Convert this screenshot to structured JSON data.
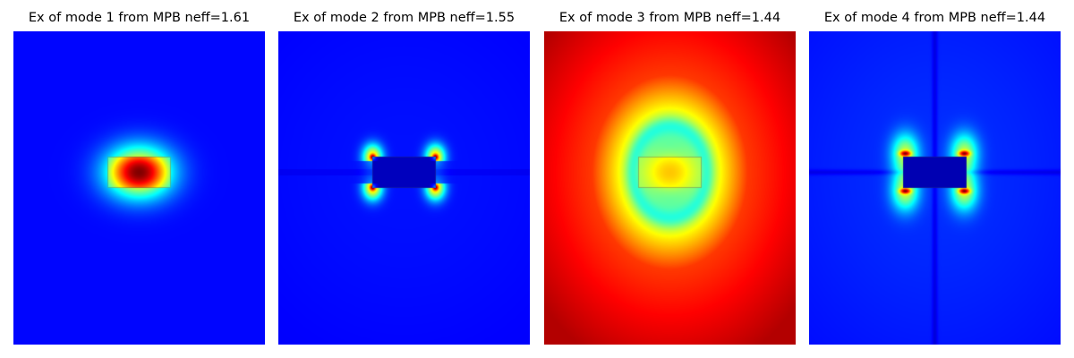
{
  "figure": {
    "colormap": "jet",
    "panels": [
      {
        "title": "Ex of mode 1 from MPB neff=1.61",
        "mode": 1,
        "neff": 1.61,
        "pattern": "fundamental-core"
      },
      {
        "title": "Ex of mode 2 from MPB neff=1.55",
        "mode": 2,
        "neff": 1.55,
        "pattern": "corner-hotspots"
      },
      {
        "title": "Ex of mode 3 from MPB neff=1.44",
        "mode": 3,
        "neff": 1.44,
        "pattern": "ring"
      },
      {
        "title": "Ex of mode 4 from MPB neff=1.44",
        "mode": 4,
        "neff": 1.44,
        "pattern": "corner-lobes"
      }
    ]
  },
  "chart_data": [
    {
      "type": "heatmap",
      "title": "Ex of mode 1 from MPB neff=1.61",
      "quantity": "Ex",
      "mode": 1,
      "neff": 1.61,
      "colormap": "jet",
      "axes": "off"
    },
    {
      "type": "heatmap",
      "title": "Ex of mode 2 from MPB neff=1.55",
      "quantity": "Ex",
      "mode": 2,
      "neff": 1.55,
      "colormap": "jet",
      "axes": "off"
    },
    {
      "type": "heatmap",
      "title": "Ex of mode 3 from MPB neff=1.44",
      "quantity": "Ex",
      "mode": 3,
      "neff": 1.44,
      "colormap": "jet",
      "axes": "off"
    },
    {
      "type": "heatmap",
      "title": "Ex of mode 4 from MPB neff=1.44",
      "quantity": "Ex",
      "mode": 4,
      "neff": 1.44,
      "colormap": "jet",
      "axes": "off"
    }
  ]
}
